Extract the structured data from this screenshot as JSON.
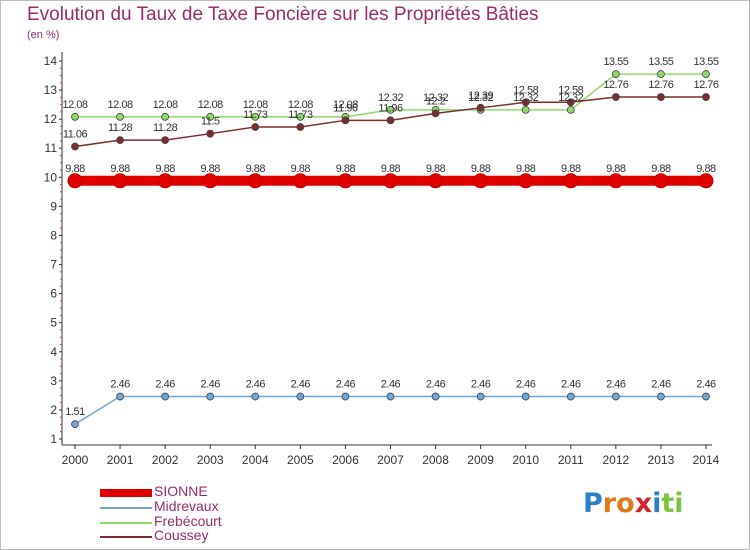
{
  "chart_data": {
    "type": "line",
    "title": "Evolution du Taux de Taxe Foncière sur les Propriétés Bâties",
    "ylabel": "(en %)",
    "x": [
      "2000",
      "2001",
      "2002",
      "2003",
      "2004",
      "2005",
      "2006",
      "2007",
      "2008",
      "2009",
      "2010",
      "2011",
      "2012",
      "2013",
      "2014"
    ],
    "yticks": [
      "1",
      "2",
      "3",
      "4",
      "5",
      "6",
      "7",
      "8",
      "9",
      "10",
      "11",
      "12",
      "13",
      "14"
    ],
    "ylim": [
      1,
      14
    ],
    "series": [
      {
        "name": "SIONNE",
        "color": "#e00000",
        "values": [
          9.88,
          9.88,
          9.88,
          9.88,
          9.88,
          9.88,
          9.88,
          9.88,
          9.88,
          9.88,
          9.88,
          9.88,
          9.88,
          9.88,
          9.88
        ],
        "labels": [
          "9.88",
          "9.88",
          "9.88",
          "9.88",
          "9.88",
          "9.88",
          "9.88",
          "9.88",
          "9.88",
          "9.88",
          "9.88",
          "9.88",
          "9.88",
          "9.88",
          "9.88"
        ]
      },
      {
        "name": "Midrevaux",
        "color": "#6fa6d6",
        "values": [
          1.51,
          2.46,
          2.46,
          2.46,
          2.46,
          2.46,
          2.46,
          2.46,
          2.46,
          2.46,
          2.46,
          2.46,
          2.46,
          2.46,
          2.46
        ],
        "labels": [
          "1.51",
          "2.46",
          "2.46",
          "2.46",
          "2.46",
          "2.46",
          "2.46",
          "2.46",
          "2.46",
          "2.46",
          "2.46",
          "2.46",
          "2.46",
          "2.46",
          "2.46"
        ]
      },
      {
        "name": "Frebécourt",
        "color": "#8fd96a",
        "values": [
          12.08,
          12.08,
          12.08,
          12.08,
          12.08,
          12.08,
          12.08,
          12.32,
          12.32,
          12.32,
          12.32,
          12.32,
          13.55,
          13.55,
          13.55
        ],
        "labels": [
          "12.08",
          "12.08",
          "12.08",
          "12.08",
          "12.08",
          "12.08",
          "12.08",
          "12.32",
          "12.32",
          "12.32",
          "12.32",
          "12.32",
          "13.55",
          "13.55",
          "13.55"
        ]
      },
      {
        "name": "Coussey",
        "color": "#7a2e2e",
        "values": [
          11.06,
          11.28,
          11.28,
          11.5,
          11.73,
          11.73,
          11.96,
          11.96,
          12.2,
          12.39,
          12.58,
          12.58,
          12.76,
          12.76,
          12.76
        ],
        "labels": [
          "11.06",
          "11.28",
          "11.28",
          "11.5",
          "11.73",
          "11.73",
          "11.96",
          "11.96",
          "12.2",
          "12.39",
          "12.58",
          "12.58",
          "12.76",
          "12.76",
          "12.76"
        ]
      }
    ]
  },
  "logo": {
    "text": [
      "P",
      "r",
      "o",
      "x",
      "i",
      "t",
      "i"
    ]
  }
}
